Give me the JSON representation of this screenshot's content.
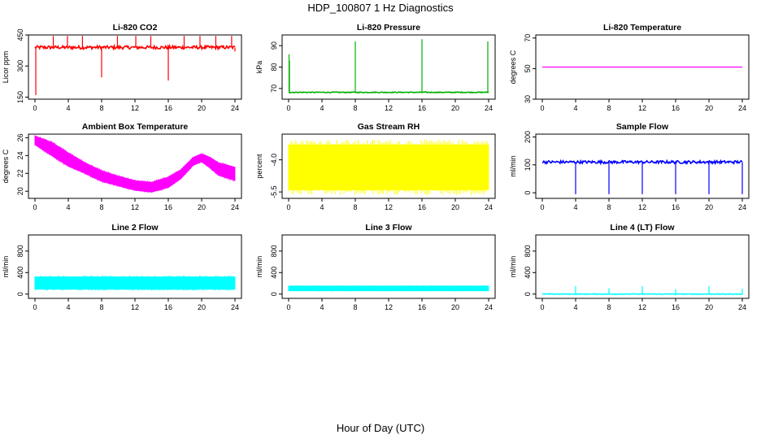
{
  "figure": {
    "title": "HDP_100807  1 Hz Diagnostics",
    "xlabel": "Hour of Day (UTC)"
  },
  "chart_data": [
    {
      "type": "line",
      "title": "Li-820 CO2",
      "ylabel": "Licor ppm",
      "color": "#ff0000",
      "xlim": [
        0,
        24
      ],
      "ylim": [
        140,
        450
      ],
      "xticks": [
        0,
        4,
        8,
        12,
        16,
        20,
        24
      ],
      "yticks": [
        150,
        300,
        450
      ],
      "yticklabels": [
        "150",
        "300",
        "450"
      ],
      "baseline": 390,
      "noise": 8,
      "series": [
        {
          "x": [
            0,
            0.1,
            0.2,
            2.2,
            3.9,
            5.7,
            8.0,
            9.9,
            12.1,
            13.9,
            16.0,
            17.9,
            19.8,
            21.7,
            23.6,
            24.0
          ],
          "y": [
            390,
            160,
            390,
            445,
            445,
            445,
            245,
            445,
            445,
            445,
            230,
            445,
            445,
            445,
            445,
            370
          ]
        }
      ]
    },
    {
      "type": "line",
      "title": "Li-820 Pressure",
      "ylabel": "kPa",
      "color": "#00b000",
      "xlim": [
        0,
        24
      ],
      "ylim": [
        65,
        95
      ],
      "xticks": [
        0,
        4,
        8,
        12,
        16,
        20,
        24
      ],
      "yticks": [
        70,
        80,
        90
      ],
      "yticklabels": [
        "70",
        "80",
        "90"
      ],
      "baseline": 68.2,
      "noise": 0.2,
      "series": [
        {
          "x": [
            0.05,
            0.1,
            8.0,
            16.0,
            23.9
          ],
          "y": [
            86,
            83,
            92,
            93,
            92
          ]
        }
      ]
    },
    {
      "type": "line",
      "title": "Li-820 Temperature",
      "ylabel": "degrees C",
      "color": "#ff00ff",
      "xlim": [
        0,
        24
      ],
      "ylim": [
        30,
        72
      ],
      "xticks": [
        0,
        4,
        8,
        12,
        16,
        20,
        24
      ],
      "yticks": [
        30,
        50,
        70
      ],
      "yticklabels": [
        "30",
        "50",
        "70"
      ],
      "series": [
        {
          "x": [
            0,
            24
          ],
          "y": [
            51,
            51
          ]
        }
      ]
    },
    {
      "type": "area",
      "title": "Ambient Box Temperature",
      "ylabel": "degrees C",
      "color": "#ff00ff",
      "xlim": [
        0,
        24
      ],
      "ylim": [
        19.2,
        26.4
      ],
      "xticks": [
        0,
        4,
        8,
        12,
        16,
        20,
        24
      ],
      "yticks": [
        20,
        22,
        24,
        26
      ],
      "yticklabels": [
        "20",
        "22",
        "24",
        "26"
      ],
      "series": [
        {
          "x": [
            0,
            2,
            4,
            6,
            8,
            10,
            12,
            14,
            16,
            17.5,
            19,
            20,
            21,
            22,
            24
          ],
          "lower": [
            25.2,
            24.0,
            22.8,
            22.0,
            21.1,
            20.6,
            20.1,
            19.9,
            20.4,
            21.4,
            22.9,
            23.3,
            22.6,
            21.8,
            21.2
          ],
          "upper": [
            26.2,
            25.5,
            24.3,
            23.2,
            22.3,
            21.7,
            21.2,
            21.0,
            21.6,
            22.4,
            23.8,
            24.2,
            23.8,
            23.2,
            22.7
          ]
        }
      ]
    },
    {
      "type": "area",
      "title": "Gas Stream RH",
      "ylabel": "percent",
      "color": "#ffff00",
      "xlim": [
        0,
        24
      ],
      "ylim": [
        -5.8,
        -2.8
      ],
      "xticks": [
        0,
        4,
        8,
        12,
        16,
        20,
        24
      ],
      "yticks": [
        -5.5,
        -4.0
      ],
      "yticklabels": [
        "-5.5",
        "-4.0"
      ],
      "series": [
        {
          "x": [
            0,
            24
          ],
          "lower": [
            -5.4,
            -5.4
          ],
          "upper": [
            -3.3,
            -3.3
          ]
        }
      ]
    },
    {
      "type": "line",
      "title": "Sample Flow",
      "ylabel": "ml/min",
      "color": "#0000ff",
      "xlim": [
        0,
        24
      ],
      "ylim": [
        -20,
        210
      ],
      "xticks": [
        0,
        4,
        8,
        12,
        16,
        20,
        24
      ],
      "yticks": [
        0,
        100,
        200
      ],
      "yticklabels": [
        "0",
        "100",
        "200"
      ],
      "baseline": 110,
      "noise": 5,
      "series": [
        {
          "x": [
            4.0,
            8.0,
            12.0,
            16.0,
            20.0,
            24.0
          ],
          "y": [
            -5,
            -5,
            -5,
            -5,
            -5,
            -5
          ]
        }
      ]
    },
    {
      "type": "area",
      "title": "Line 2 Flow",
      "ylabel": "ml/min",
      "color": "#00ffff",
      "xlim": [
        0,
        24
      ],
      "ylim": [
        -80,
        1100
      ],
      "xticks": [
        0,
        4,
        8,
        12,
        16,
        20,
        24
      ],
      "yticks": [
        0,
        400,
        800
      ],
      "yticklabels": [
        "0",
        "400",
        "800"
      ],
      "series": [
        {
          "x": [
            0,
            24
          ],
          "lower": [
            90,
            90
          ],
          "upper": [
            320,
            320
          ]
        }
      ]
    },
    {
      "type": "area",
      "title": "Line 3 Flow",
      "ylabel": "ml/min",
      "color": "#00ffff",
      "xlim": [
        0,
        24
      ],
      "ylim": [
        -80,
        1100
      ],
      "xticks": [
        0,
        4,
        8,
        12,
        16,
        20,
        24
      ],
      "yticks": [
        0,
        400,
        800
      ],
      "yticklabels": [
        "0",
        "400",
        "800"
      ],
      "series": [
        {
          "x": [
            0,
            24
          ],
          "lower": [
            60,
            60
          ],
          "upper": [
            150,
            150
          ]
        }
      ]
    },
    {
      "type": "line",
      "title": "Line 4 (LT) Flow",
      "ylabel": "ml/min",
      "color": "#00ffff",
      "xlim": [
        0,
        24
      ],
      "ylim": [
        -80,
        1100
      ],
      "xticks": [
        0,
        4,
        8,
        12,
        16,
        20,
        24
      ],
      "yticks": [
        0,
        400,
        800
      ],
      "yticklabels": [
        "0",
        "400",
        "800"
      ],
      "baseline": 0,
      "noise": 6,
      "series": [
        {
          "x": [
            4.0,
            8.0,
            12.0,
            16.0,
            20.0,
            24.0
          ],
          "y": [
            150,
            110,
            150,
            90,
            150,
            100
          ]
        }
      ]
    }
  ]
}
